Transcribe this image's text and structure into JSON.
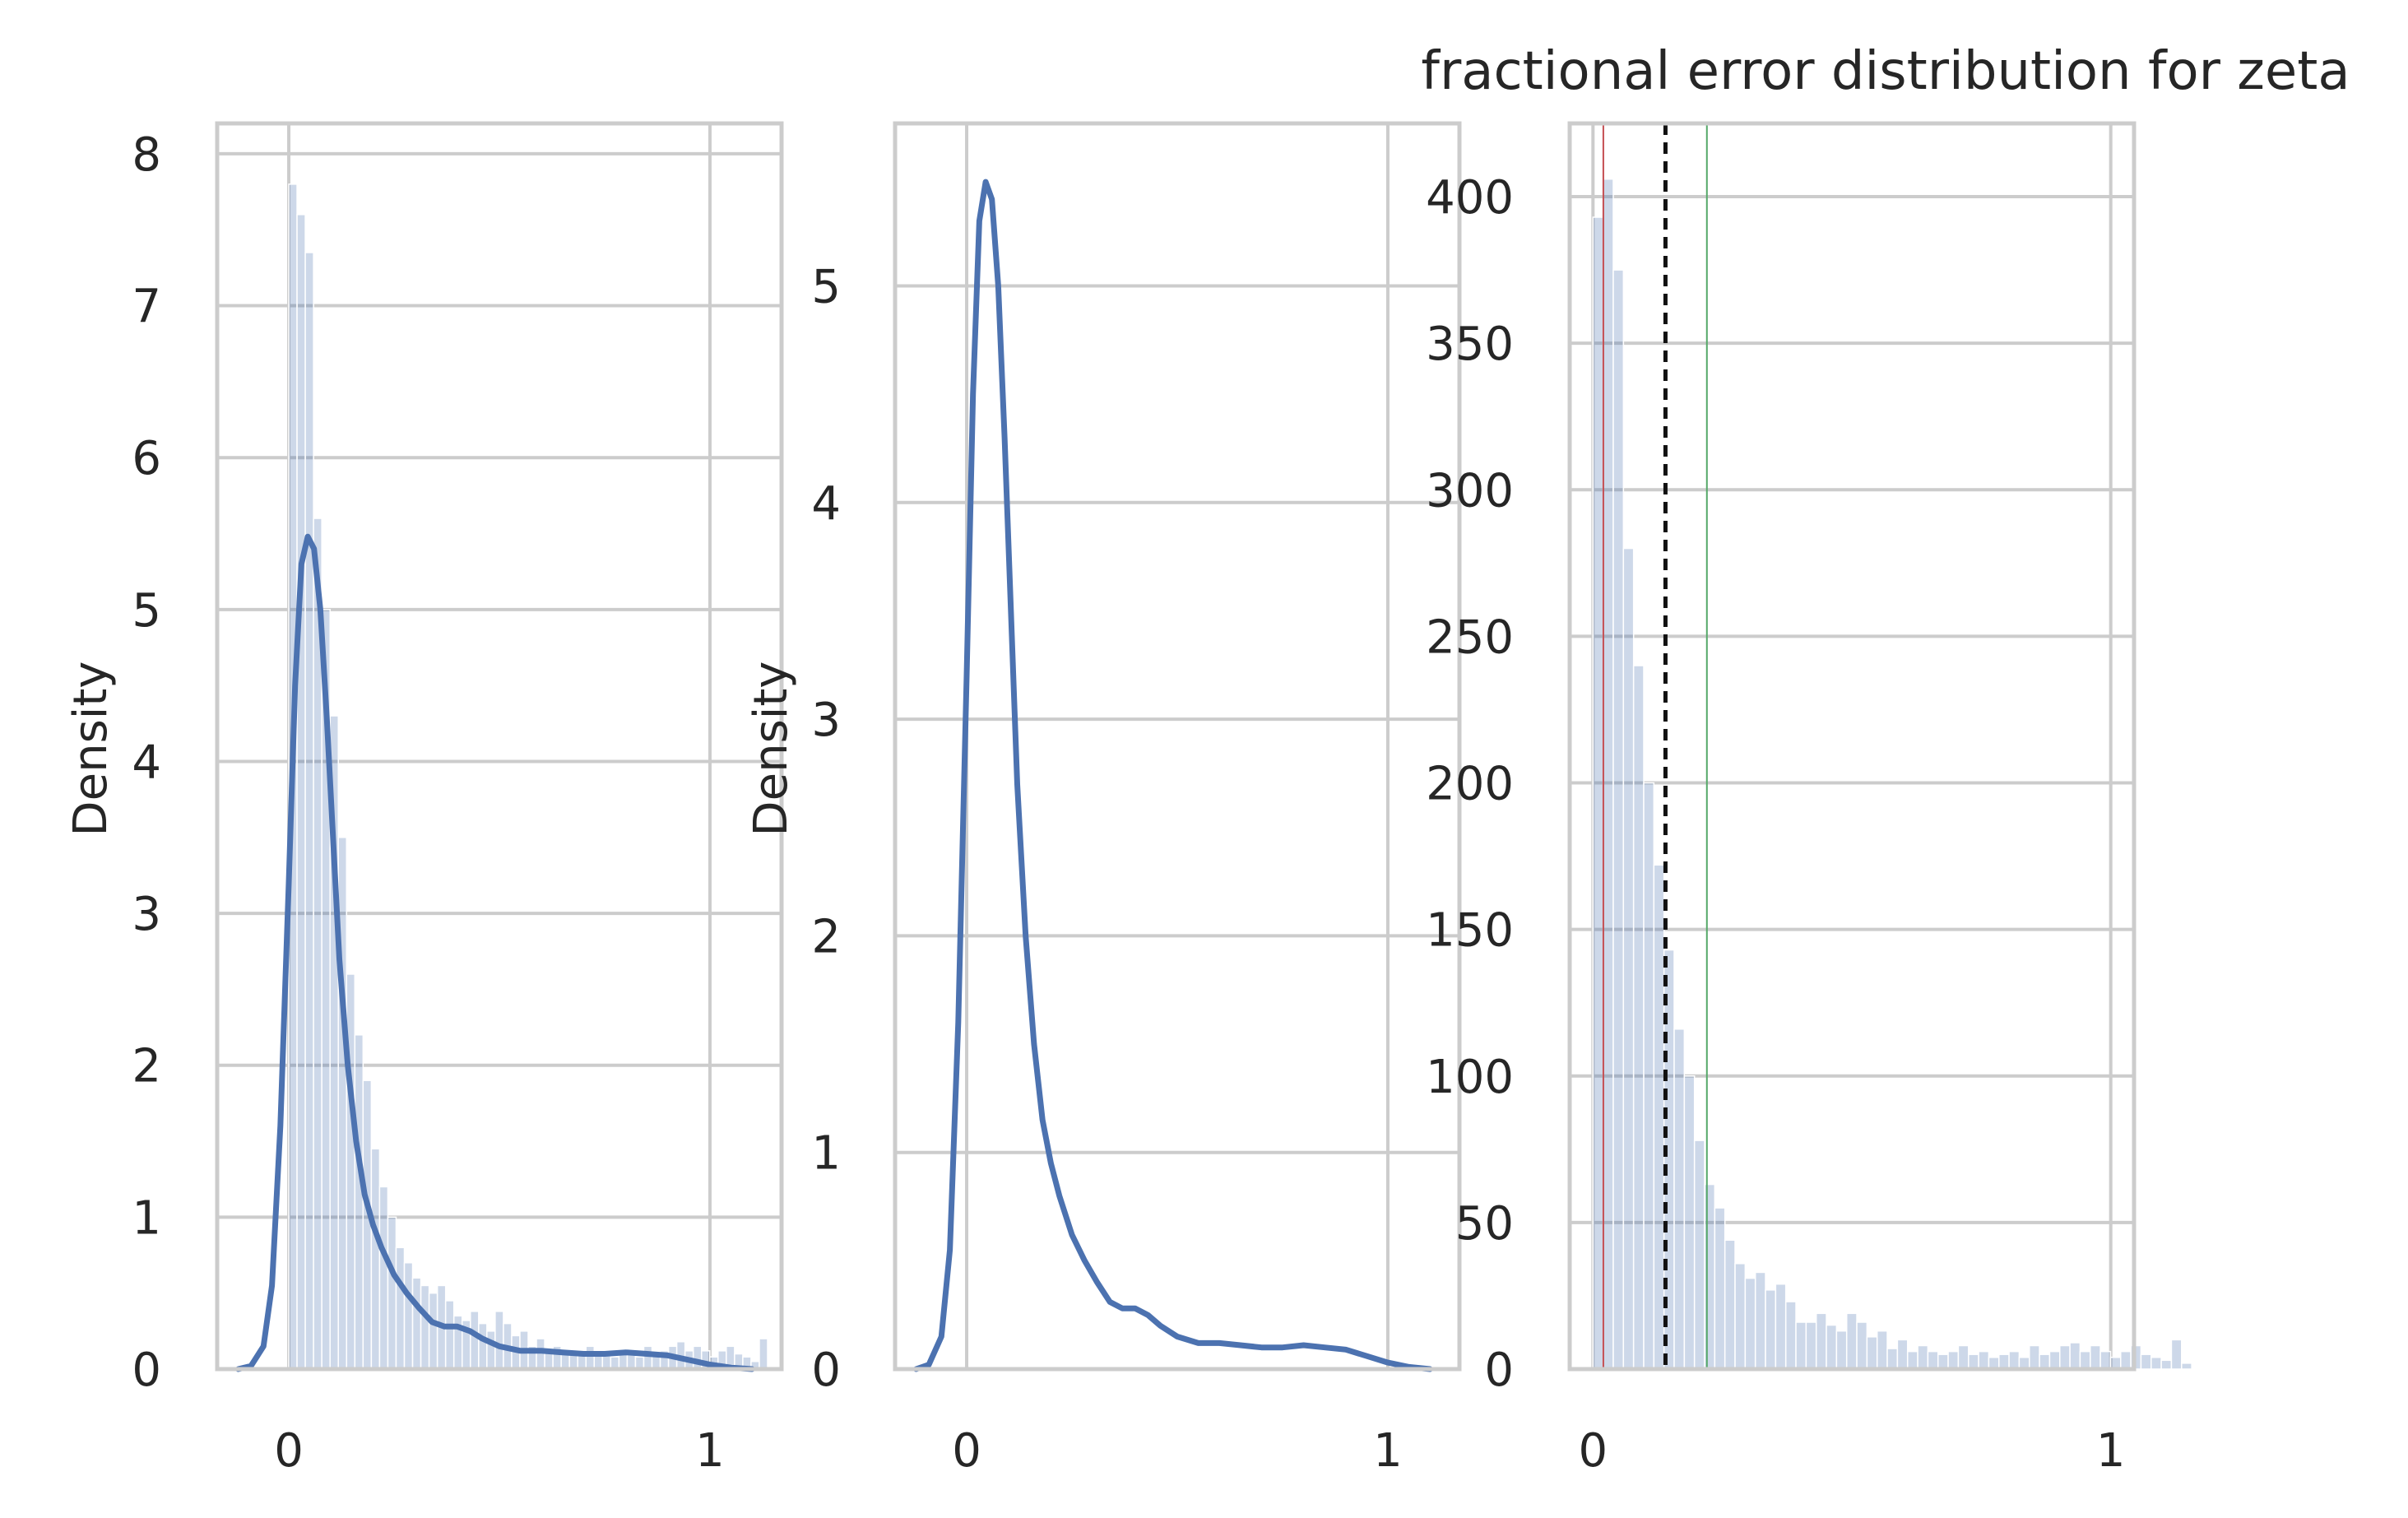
{
  "chart_data": [
    {
      "type": "histogram+kde",
      "title": "",
      "xlabel": "",
      "ylabel": "Density",
      "xlim": [
        -0.17,
        1.17
      ],
      "ylim": [
        0,
        8.2
      ],
      "xticks": [
        0,
        1
      ],
      "xtick_labels": [
        "0",
        "1"
      ],
      "yticks": [
        0,
        1,
        2,
        3,
        4,
        5,
        6,
        7,
        8
      ],
      "ytick_labels": [
        "0",
        "1",
        "2",
        "3",
        "4",
        "5",
        "6",
        "7",
        "8"
      ],
      "grid": true,
      "histogram": {
        "bin_start": 0.0,
        "bin_width": 0.0196,
        "values": [
          7.8,
          7.6,
          7.35,
          5.6,
          5.0,
          4.3,
          3.5,
          2.6,
          2.2,
          1.9,
          1.45,
          1.2,
          1.0,
          0.8,
          0.7,
          0.6,
          0.55,
          0.5,
          0.55,
          0.45,
          0.35,
          0.32,
          0.38,
          0.3,
          0.25,
          0.38,
          0.3,
          0.22,
          0.25,
          0.15,
          0.2,
          0.12,
          0.15,
          0.12,
          0.1,
          0.12,
          0.15,
          0.1,
          0.12,
          0.08,
          0.1,
          0.12,
          0.08,
          0.15,
          0.1,
          0.12,
          0.15,
          0.18,
          0.12,
          0.15,
          0.12,
          0.08,
          0.12,
          0.15,
          0.1,
          0.08,
          0.05,
          0.2
        ]
      },
      "kde": {
        "x": [
          -0.12,
          -0.09,
          -0.06,
          -0.04,
          -0.02,
          0.0,
          0.015,
          0.03,
          0.045,
          0.06,
          0.075,
          0.09,
          0.105,
          0.12,
          0.14,
          0.16,
          0.18,
          0.2,
          0.22,
          0.25,
          0.28,
          0.31,
          0.34,
          0.37,
          0.4,
          0.43,
          0.46,
          0.5,
          0.55,
          0.6,
          0.65,
          0.7,
          0.75,
          0.8,
          0.85,
          0.9,
          0.95,
          1.0,
          1.05,
          1.1
        ],
        "y": [
          0.0,
          0.02,
          0.15,
          0.55,
          1.6,
          3.2,
          4.5,
          5.3,
          5.48,
          5.4,
          5.0,
          4.3,
          3.5,
          2.7,
          2.0,
          1.5,
          1.15,
          0.95,
          0.8,
          0.62,
          0.5,
          0.4,
          0.31,
          0.28,
          0.28,
          0.25,
          0.2,
          0.15,
          0.12,
          0.12,
          0.11,
          0.1,
          0.1,
          0.11,
          0.1,
          0.09,
          0.06,
          0.03,
          0.01,
          0.0
        ]
      }
    },
    {
      "type": "line",
      "title": "",
      "xlabel": "",
      "ylabel": "Density",
      "xlim": [
        -0.17,
        1.17
      ],
      "ylim": [
        0,
        5.75
      ],
      "xticks": [
        0,
        1
      ],
      "xtick_labels": [
        "0",
        "1"
      ],
      "yticks": [
        0,
        1,
        2,
        3,
        4,
        5
      ],
      "ytick_labels": [
        "0",
        "1",
        "2",
        "3",
        "4",
        "5"
      ],
      "grid": true,
      "kde": {
        "x": [
          -0.12,
          -0.09,
          -0.06,
          -0.04,
          -0.02,
          0.0,
          0.015,
          0.03,
          0.045,
          0.06,
          0.075,
          0.09,
          0.105,
          0.12,
          0.14,
          0.16,
          0.18,
          0.2,
          0.22,
          0.25,
          0.28,
          0.31,
          0.34,
          0.37,
          0.4,
          0.43,
          0.46,
          0.5,
          0.55,
          0.6,
          0.65,
          0.7,
          0.75,
          0.8,
          0.85,
          0.9,
          0.95,
          1.0,
          1.05,
          1.1
        ],
        "y": [
          0.0,
          0.02,
          0.15,
          0.55,
          1.6,
          3.2,
          4.5,
          5.3,
          5.48,
          5.4,
          5.0,
          4.3,
          3.5,
          2.7,
          2.0,
          1.5,
          1.15,
          0.95,
          0.8,
          0.62,
          0.5,
          0.4,
          0.31,
          0.28,
          0.28,
          0.25,
          0.2,
          0.15,
          0.12,
          0.12,
          0.11,
          0.1,
          0.1,
          0.11,
          0.1,
          0.09,
          0.06,
          0.03,
          0.01,
          0.0
        ]
      }
    },
    {
      "type": "histogram",
      "title": "fractional error distribution for zeta",
      "xlabel": "",
      "ylabel": "",
      "xlim": [
        -0.045,
        1.045
      ],
      "ylim": [
        0,
        425
      ],
      "xticks": [
        0,
        1
      ],
      "xtick_labels": [
        "0",
        "1"
      ],
      "yticks": [
        0,
        50,
        100,
        150,
        200,
        250,
        300,
        350,
        400
      ],
      "ytick_labels": [
        "0",
        "50",
        "100",
        "150",
        "200",
        "250",
        "300",
        "350",
        "400"
      ],
      "grid": true,
      "histogram": {
        "bin_start": 0.0,
        "bin_width": 0.0196,
        "values": [
          393,
          406,
          375,
          280,
          240,
          200,
          172,
          143,
          116,
          100,
          78,
          63,
          55,
          44,
          36,
          31,
          33,
          27,
          29,
          23,
          16,
          16,
          19,
          15,
          13,
          19,
          16,
          11,
          13,
          7,
          10,
          6,
          8,
          6,
          5,
          6,
          8,
          5,
          6,
          4,
          5,
          6,
          4,
          8,
          5,
          6,
          8,
          9,
          6,
          8,
          6,
          4,
          6,
          8,
          5,
          4,
          3,
          10,
          2
        ]
      },
      "vlines": [
        {
          "x": 0.02,
          "color": "#c44e52",
          "style": "solid"
        },
        {
          "x": 0.14,
          "color": "#111111",
          "style": "dashed"
        },
        {
          "x": 0.22,
          "color": "#55a868",
          "style": "solid"
        }
      ]
    }
  ],
  "colors": {
    "kde_line": "#4c72b0",
    "bar_fill": "#4c72b0",
    "grid": "#cccccc",
    "spine": "#cccccc",
    "text": "#262626"
  }
}
